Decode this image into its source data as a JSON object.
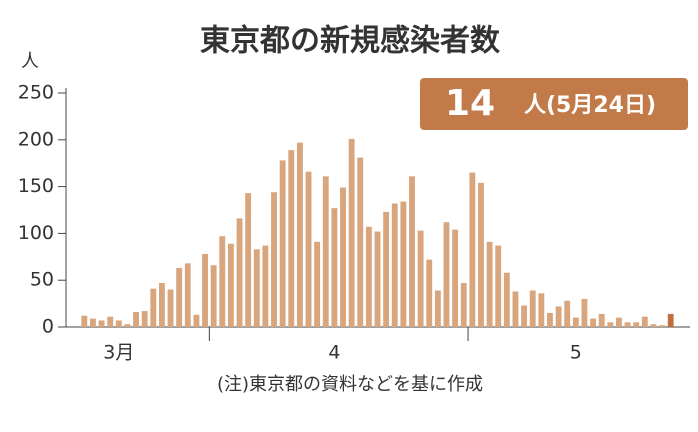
{
  "chart_data": {
    "type": "bar",
    "title": "東京都の新規感染者数",
    "y_unit": "人",
    "badge": [
      "14",
      "人(5月24日)"
    ],
    "note": "(注)東京都の資料などを基に作成",
    "categories": [
      null,
      null,
      null,
      null,
      "3月",
      null,
      null,
      null,
      null,
      null,
      null,
      null,
      null,
      null,
      null,
      null,
      null,
      null,
      null,
      null,
      null,
      null,
      null,
      null,
      null,
      null,
      null,
      null,
      null,
      "4",
      null,
      null,
      null,
      null,
      null,
      null,
      null,
      null,
      null,
      null,
      null,
      null,
      null,
      null,
      null,
      null,
      null,
      null,
      null,
      null,
      null,
      null,
      null,
      null,
      null,
      null,
      null,
      "5",
      null,
      null,
      null,
      null,
      null,
      null,
      null,
      null,
      null,
      null,
      null
    ],
    "values": [
      12,
      9,
      7,
      11,
      7,
      3,
      16,
      17,
      41,
      47,
      40,
      63,
      68,
      13,
      78,
      66,
      97,
      89,
      116,
      143,
      83,
      87,
      144,
      178,
      189,
      197,
      166,
      91,
      161,
      127,
      149,
      201,
      181,
      107,
      102,
      123,
      132,
      134,
      161,
      103,
      72,
      39,
      112,
      104,
      47,
      165,
      154,
      91,
      87,
      58,
      38,
      23,
      39,
      36,
      15,
      22,
      28,
      10,
      30,
      9,
      14,
      5,
      10,
      5,
      5,
      11,
      3,
      2,
      14
    ],
    "color": "#d9a57c",
    "highlight_color": "#c0703f",
    "ylim": [
      0,
      250
    ],
    "yticks": [
      0,
      50,
      100,
      150,
      200,
      250
    ]
  }
}
